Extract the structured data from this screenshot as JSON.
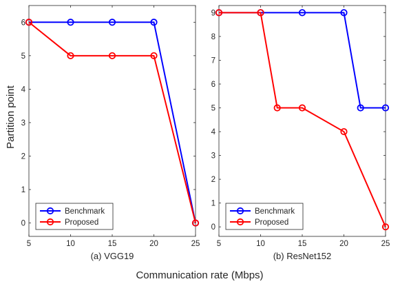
{
  "figure": {
    "ylabel": "Partition point",
    "xlabel": "Communication rate (Mbps)"
  },
  "chart_data": [
    {
      "type": "line",
      "caption": "(a) VGG19",
      "xlim": [
        5,
        25
      ],
      "ylim": [
        -0.4,
        6.5
      ],
      "xticks": [
        5,
        10,
        15,
        20,
        25
      ],
      "yticks": [
        0,
        1,
        2,
        3,
        4,
        5,
        6
      ],
      "grid": false,
      "legend_position": "bottom-left",
      "series": [
        {
          "name": "Benchmark",
          "color": "#0000ff",
          "marker": "circle",
          "x": [
            5,
            10,
            15,
            20,
            25
          ],
          "y": [
            6,
            6,
            6,
            6,
            0
          ]
        },
        {
          "name": "Proposed",
          "color": "#ff0000",
          "marker": "circle",
          "x": [
            5,
            10,
            15,
            20,
            25
          ],
          "y": [
            6,
            5,
            5,
            5,
            0
          ]
        }
      ]
    },
    {
      "type": "line",
      "caption": "(b) ResNet152",
      "xlim": [
        5,
        25
      ],
      "ylim": [
        -0.4,
        9.3
      ],
      "xticks": [
        5,
        10,
        15,
        20,
        25
      ],
      "yticks": [
        0,
        1,
        2,
        3,
        4,
        5,
        6,
        7,
        8,
        9
      ],
      "grid": false,
      "legend_position": "bottom-left",
      "series": [
        {
          "name": "Benchmark",
          "color": "#0000ff",
          "marker": "circle",
          "x": [
            5,
            10,
            15,
            20,
            22,
            25
          ],
          "y": [
            9,
            9,
            9,
            9,
            5,
            5
          ]
        },
        {
          "name": "Proposed",
          "color": "#ff0000",
          "marker": "circle",
          "x": [
            5,
            10,
            12,
            15,
            20,
            25
          ],
          "y": [
            9,
            9,
            5,
            5,
            4,
            0
          ]
        }
      ]
    }
  ]
}
